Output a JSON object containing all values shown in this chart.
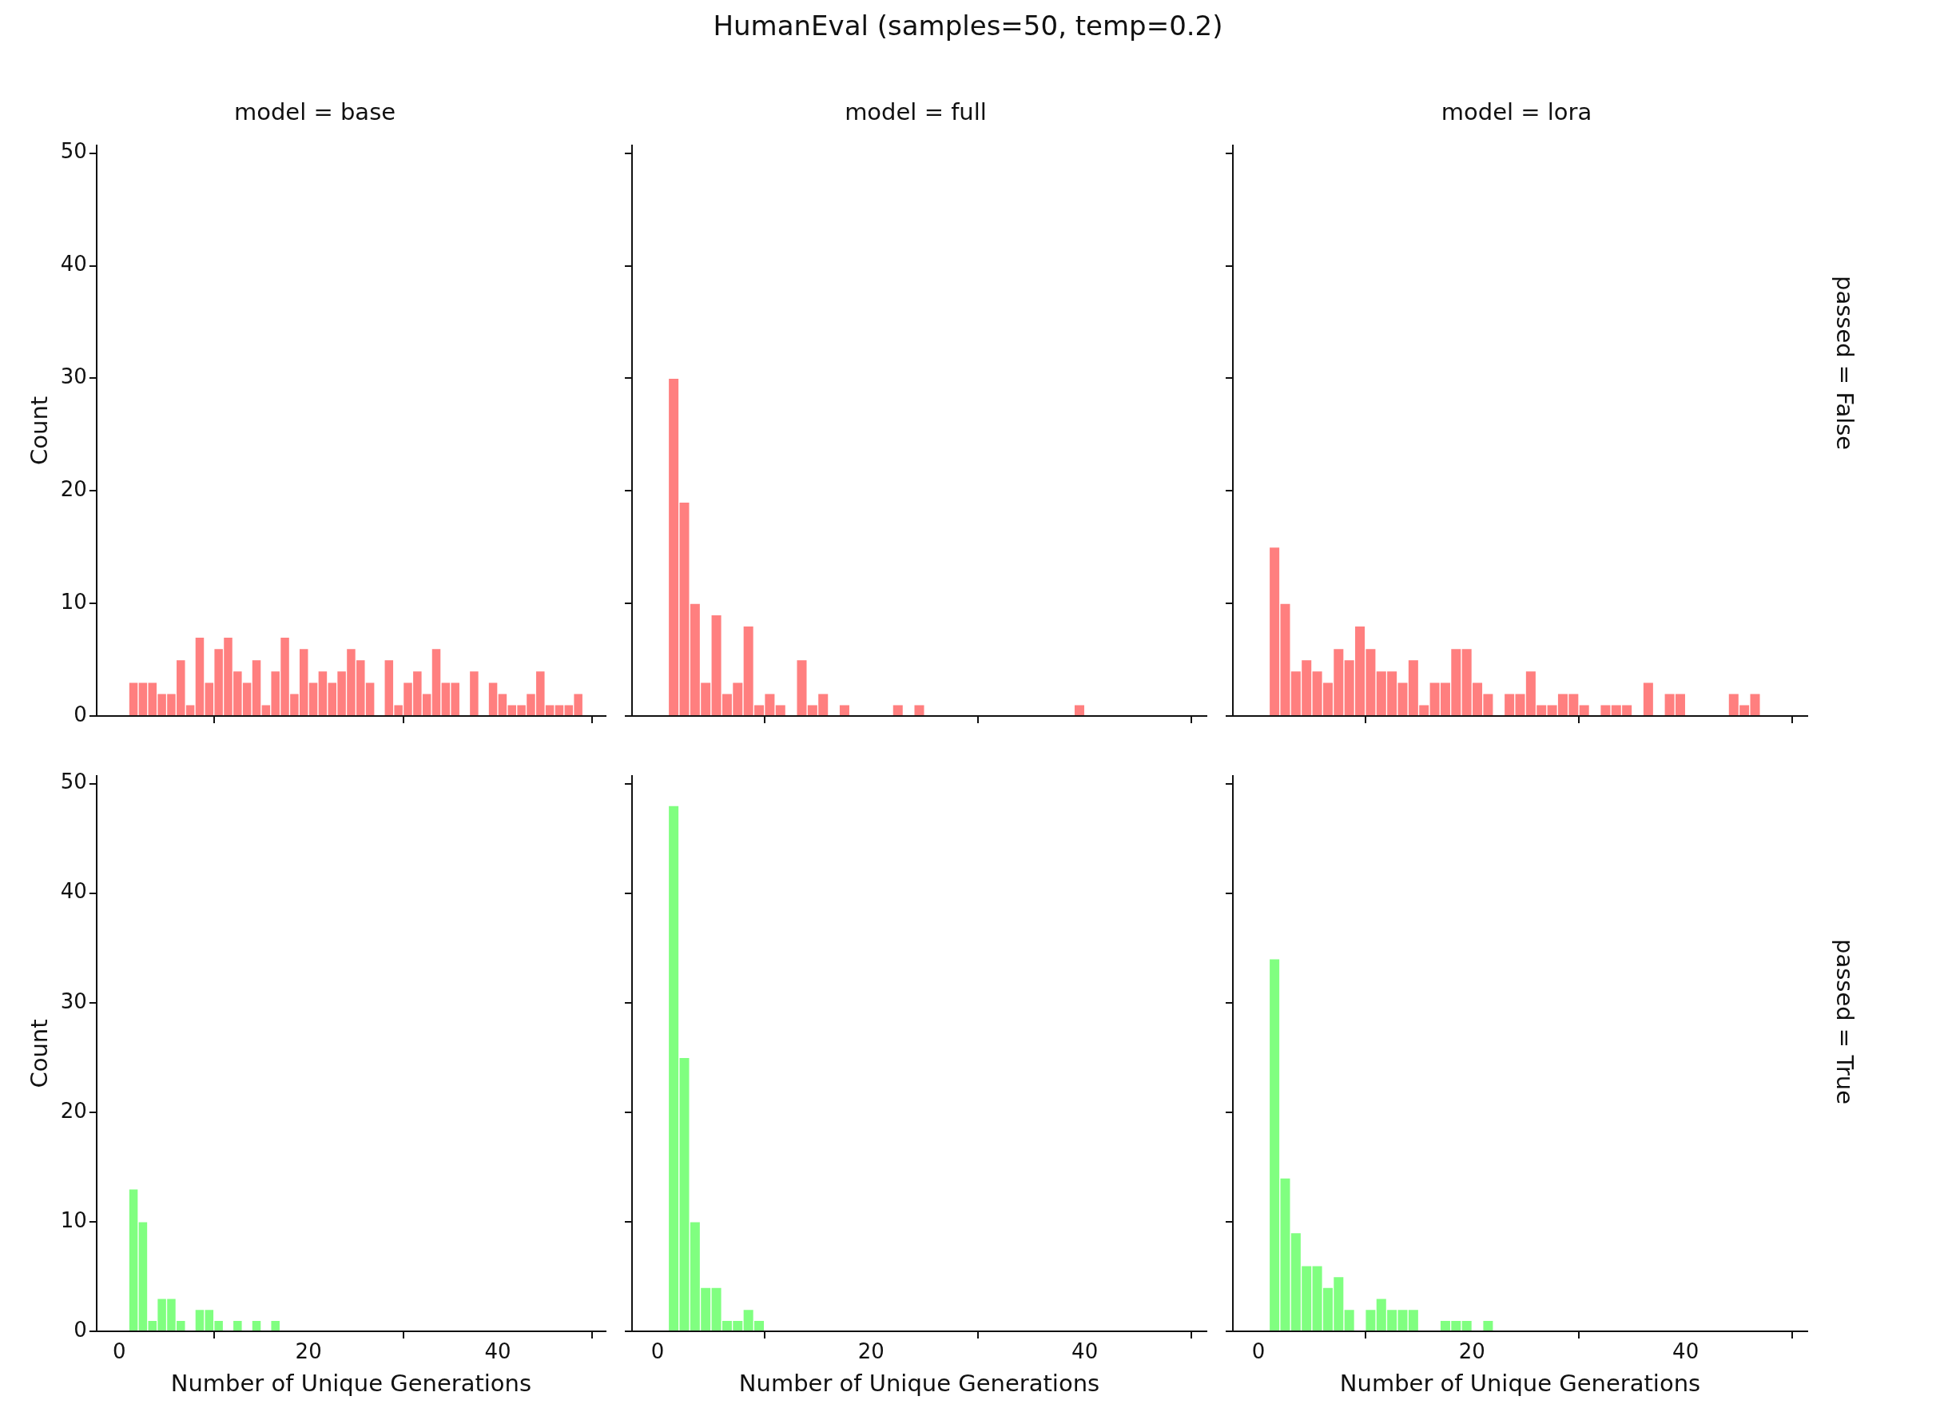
{
  "chart_data": [
    {
      "type": "histogram",
      "title": "model = base",
      "ylabel": "Count",
      "annotations": [
        "HumanEval (samples=50, temp=0.2)"
      ],
      "color": "#ff7f7f",
      "tick_labels": "y",
      "grid": false,
      "legend": false,
      "xlim": [
        -2.4,
        51.4
      ],
      "ylim": [
        0,
        50.7
      ],
      "xticks": [
        0,
        20,
        40
      ],
      "yticks": [
        0,
        10,
        20,
        30,
        40,
        50
      ],
      "bins": [
        1,
        2,
        3,
        4,
        5,
        6,
        7,
        8,
        9,
        10,
        11,
        12,
        13,
        14,
        15,
        16,
        17,
        18,
        19,
        20,
        21,
        22,
        23,
        24,
        25,
        26,
        27,
        28,
        29,
        30,
        31,
        32,
        33,
        34,
        35,
        36,
        37,
        38,
        39,
        40,
        41,
        42,
        43,
        44,
        45,
        46,
        47,
        48,
        49
      ],
      "values": [
        3,
        3,
        3,
        2,
        2,
        5,
        1,
        7,
        3,
        6,
        7,
        4,
        3,
        5,
        1,
        4,
        7,
        2,
        6,
        3,
        4,
        3,
        4,
        6,
        5,
        3,
        0,
        5,
        1,
        3,
        4,
        2,
        6,
        3,
        3,
        0,
        4,
        0,
        3,
        2,
        1,
        1,
        2,
        4,
        1,
        1,
        1,
        2
      ]
    },
    {
      "type": "histogram",
      "title": "model = full",
      "color": "#ff7f7f",
      "tick_labels": false,
      "grid": false,
      "legend": false,
      "xlim": [
        -2.4,
        51.4
      ],
      "ylim": [
        0,
        50.7
      ],
      "xticks": [
        0,
        20,
        40
      ],
      "yticks": [
        0,
        10,
        20,
        30,
        40,
        50
      ],
      "bins": [
        1,
        2,
        3,
        4,
        5,
        6,
        7,
        8,
        9,
        10,
        11,
        12,
        13,
        14,
        15,
        16,
        17,
        18,
        19,
        20,
        21,
        22,
        23,
        24,
        25,
        26,
        27,
        28,
        29,
        30,
        31,
        32,
        33,
        34,
        35,
        36,
        37,
        38,
        39,
        40,
        41,
        42,
        43,
        44,
        45,
        46,
        47,
        48,
        49
      ],
      "values": [
        30,
        19,
        10,
        3,
        9,
        2,
        3,
        8,
        1,
        2,
        1,
        0,
        5,
        1,
        2,
        0,
        1,
        0,
        0,
        0,
        0,
        1,
        0,
        1,
        0,
        0,
        0,
        0,
        0,
        0,
        0,
        0,
        0,
        0,
        0,
        0,
        0,
        0,
        1,
        0,
        0,
        0,
        0,
        0,
        0,
        0,
        0,
        0
      ]
    },
    {
      "type": "histogram",
      "title": "model = lora",
      "annotations": [
        "passed = False"
      ],
      "color": "#ff7f7f",
      "tick_labels": false,
      "grid": false,
      "legend": false,
      "xlim": [
        -2.4,
        51.4
      ],
      "ylim": [
        0,
        50.7
      ],
      "xticks": [
        0,
        20,
        40
      ],
      "yticks": [
        0,
        10,
        20,
        30,
        40,
        50
      ],
      "bins": [
        1,
        2,
        3,
        4,
        5,
        6,
        7,
        8,
        9,
        10,
        11,
        12,
        13,
        14,
        15,
        16,
        17,
        18,
        19,
        20,
        21,
        22,
        23,
        24,
        25,
        26,
        27,
        28,
        29,
        30,
        31,
        32,
        33,
        34,
        35,
        36,
        37,
        38,
        39,
        40,
        41,
        42,
        43,
        44,
        45,
        46,
        47,
        48,
        49
      ],
      "values": [
        15,
        10,
        4,
        5,
        4,
        3,
        6,
        5,
        8,
        6,
        4,
        4,
        3,
        5,
        1,
        3,
        3,
        6,
        6,
        3,
        2,
        0,
        2,
        2,
        4,
        1,
        1,
        2,
        2,
        1,
        0,
        1,
        1,
        1,
        0,
        3,
        0,
        2,
        2,
        0,
        0,
        0,
        0,
        2,
        1,
        2,
        0,
        0
      ]
    },
    {
      "type": "histogram",
      "xlabel": "Number of Unique Generations",
      "ylabel": "Count",
      "color": "#80ff80",
      "grid": false,
      "legend": false,
      "xlim": [
        -2.4,
        51.4
      ],
      "ylim": [
        0,
        50.7
      ],
      "xticks": [
        0,
        20,
        40
      ],
      "yticks": [
        0,
        10,
        20,
        30,
        40,
        50
      ],
      "bins": [
        1,
        2,
        3,
        4,
        5,
        6,
        7,
        8,
        9,
        10,
        11,
        12,
        13,
        14,
        15,
        16,
        17,
        18,
        19,
        20,
        21,
        22,
        23,
        24,
        25,
        26,
        27,
        28,
        29,
        30,
        31,
        32,
        33,
        34,
        35,
        36,
        37,
        38,
        39,
        40,
        41,
        42,
        43,
        44,
        45,
        46,
        47,
        48,
        49
      ],
      "values": [
        13,
        10,
        1,
        3,
        3,
        1,
        0,
        2,
        2,
        1,
        0,
        1,
        0,
        1,
        0,
        1,
        0,
        0,
        0,
        0,
        0,
        0,
        0,
        0,
        0,
        0,
        0,
        0,
        0,
        0,
        0,
        0,
        0,
        0,
        0,
        0,
        0,
        0,
        0,
        0,
        0,
        0,
        0,
        0,
        0,
        0,
        0,
        0
      ]
    },
    {
      "type": "histogram",
      "xlabel": "Number of Unique Generations",
      "color": "#80ff80",
      "tick_labels": "x",
      "grid": false,
      "legend": false,
      "xlim": [
        -2.4,
        51.4
      ],
      "ylim": [
        0,
        50.7
      ],
      "xticks": [
        0,
        20,
        40
      ],
      "yticks": [
        0,
        10,
        20,
        30,
        40,
        50
      ],
      "bins": [
        1,
        2,
        3,
        4,
        5,
        6,
        7,
        8,
        9,
        10,
        11,
        12,
        13,
        14,
        15,
        16,
        17,
        18,
        19,
        20,
        21,
        22,
        23,
        24,
        25,
        26,
        27,
        28,
        29,
        30,
        31,
        32,
        33,
        34,
        35,
        36,
        37,
        38,
        39,
        40,
        41,
        42,
        43,
        44,
        45,
        46,
        47,
        48,
        49
      ],
      "values": [
        48,
        25,
        10,
        4,
        4,
        1,
        1,
        2,
        1,
        0,
        0,
        0,
        0,
        0,
        0,
        0,
        0,
        0,
        0,
        0,
        0,
        0,
        0,
        0,
        0,
        0,
        0,
        0,
        0,
        0,
        0,
        0,
        0,
        0,
        0,
        0,
        0,
        0,
        0,
        0,
        0,
        0,
        0,
        0,
        0,
        0,
        0,
        0
      ]
    },
    {
      "type": "histogram",
      "xlabel": "Number of Unique Generations",
      "annotations": [
        "passed = True"
      ],
      "color": "#80ff80",
      "tick_labels": "x",
      "grid": false,
      "legend": false,
      "xlim": [
        -2.4,
        51.4
      ],
      "ylim": [
        0,
        50.7
      ],
      "xticks": [
        0,
        20,
        40
      ],
      "yticks": [
        0,
        10,
        20,
        30,
        40,
        50
      ],
      "bins": [
        1,
        2,
        3,
        4,
        5,
        6,
        7,
        8,
        9,
        10,
        11,
        12,
        13,
        14,
        15,
        16,
        17,
        18,
        19,
        20,
        21,
        22,
        23,
        24,
        25,
        26,
        27,
        28,
        29,
        30,
        31,
        32,
        33,
        34,
        35,
        36,
        37,
        38,
        39,
        40,
        41,
        42,
        43,
        44,
        45,
        46,
        47,
        48,
        49
      ],
      "values": [
        34,
        14,
        9,
        6,
        6,
        4,
        5,
        2,
        0,
        2,
        3,
        2,
        2,
        2,
        0,
        0,
        1,
        1,
        1,
        0,
        1,
        0,
        0,
        0,
        0,
        0,
        0,
        0,
        0,
        0,
        0,
        0,
        0,
        0,
        0,
        0,
        0,
        0,
        0,
        0,
        0,
        0,
        0,
        0,
        0,
        0,
        0,
        0
      ]
    }
  ]
}
